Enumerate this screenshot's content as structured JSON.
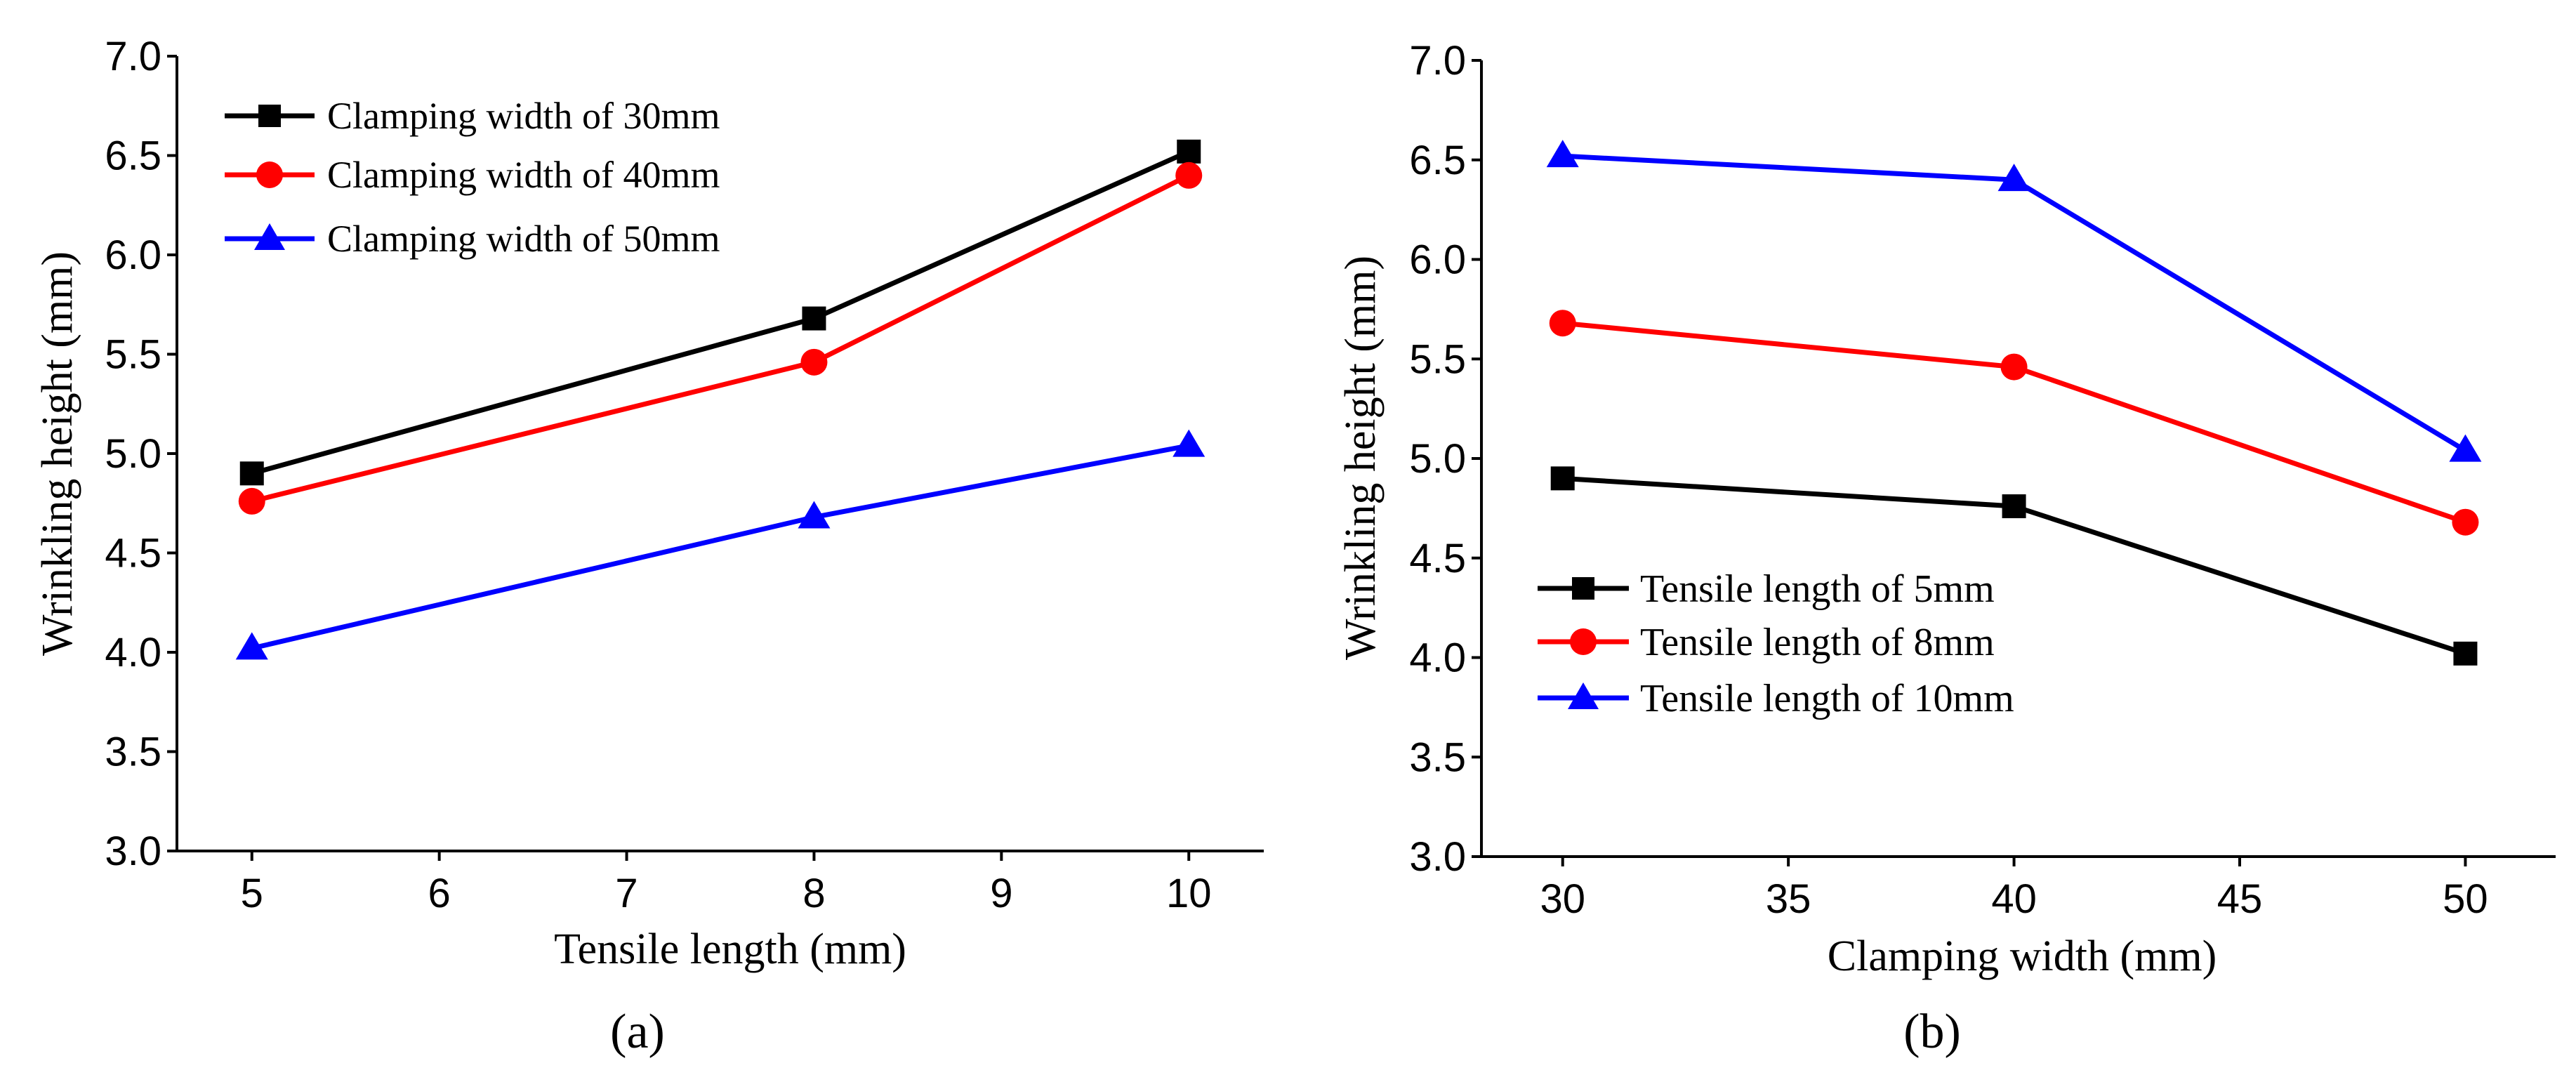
{
  "chart_data": [
    {
      "type": "line",
      "panel_label": "(a)",
      "xlabel": "Tensile length (mm)",
      "ylabel": "Wrinkling height (mm)",
      "xlim": [
        4.6,
        10.4
      ],
      "ylim": [
        3.0,
        7.0
      ],
      "xticks": [
        "5",
        "6",
        "7",
        "8",
        "9",
        "10"
      ],
      "yticks": [
        "3.0",
        "3.5",
        "4.0",
        "4.5",
        "5.0",
        "5.5",
        "6.0",
        "6.5",
        "7.0"
      ],
      "x": [
        5,
        8,
        10
      ],
      "legend_position": "top-left",
      "series": [
        {
          "name": "Clamping width of 30mm",
          "color": "#000000",
          "marker": "square",
          "values": [
            4.9,
            5.68,
            6.52
          ]
        },
        {
          "name": "Clamping width of 40mm",
          "color": "#ff0000",
          "marker": "circle",
          "values": [
            4.76,
            5.46,
            6.4
          ]
        },
        {
          "name": "Clamping width of 50mm",
          "color": "#0000ff",
          "marker": "triangle",
          "values": [
            4.02,
            4.68,
            5.04
          ]
        }
      ]
    },
    {
      "type": "line",
      "panel_label": "(b)",
      "xlabel": "Clamping width (mm)",
      "ylabel": "Wrinkling height (mm)",
      "xlim": [
        28.2,
        52
      ],
      "ylim": [
        3.0,
        7.0
      ],
      "xticks": [
        "30",
        "35",
        "40",
        "45",
        "50"
      ],
      "yticks": [
        "3.0",
        "3.5",
        "4.0",
        "4.5",
        "5.0",
        "5.5",
        "6.0",
        "6.5",
        "7.0"
      ],
      "x": [
        30,
        40,
        50
      ],
      "legend_position": "bottom-left",
      "series": [
        {
          "name": "Tensile length of 5mm",
          "color": "#000000",
          "marker": "square",
          "values": [
            4.9,
            4.76,
            4.02
          ]
        },
        {
          "name": "Tensile length of 8mm",
          "color": "#ff0000",
          "marker": "circle",
          "values": [
            5.68,
            5.46,
            4.68
          ]
        },
        {
          "name": "Tensile length of 10mm",
          "color": "#0000ff",
          "marker": "triangle",
          "values": [
            6.52,
            6.4,
            5.04
          ]
        }
      ]
    }
  ]
}
